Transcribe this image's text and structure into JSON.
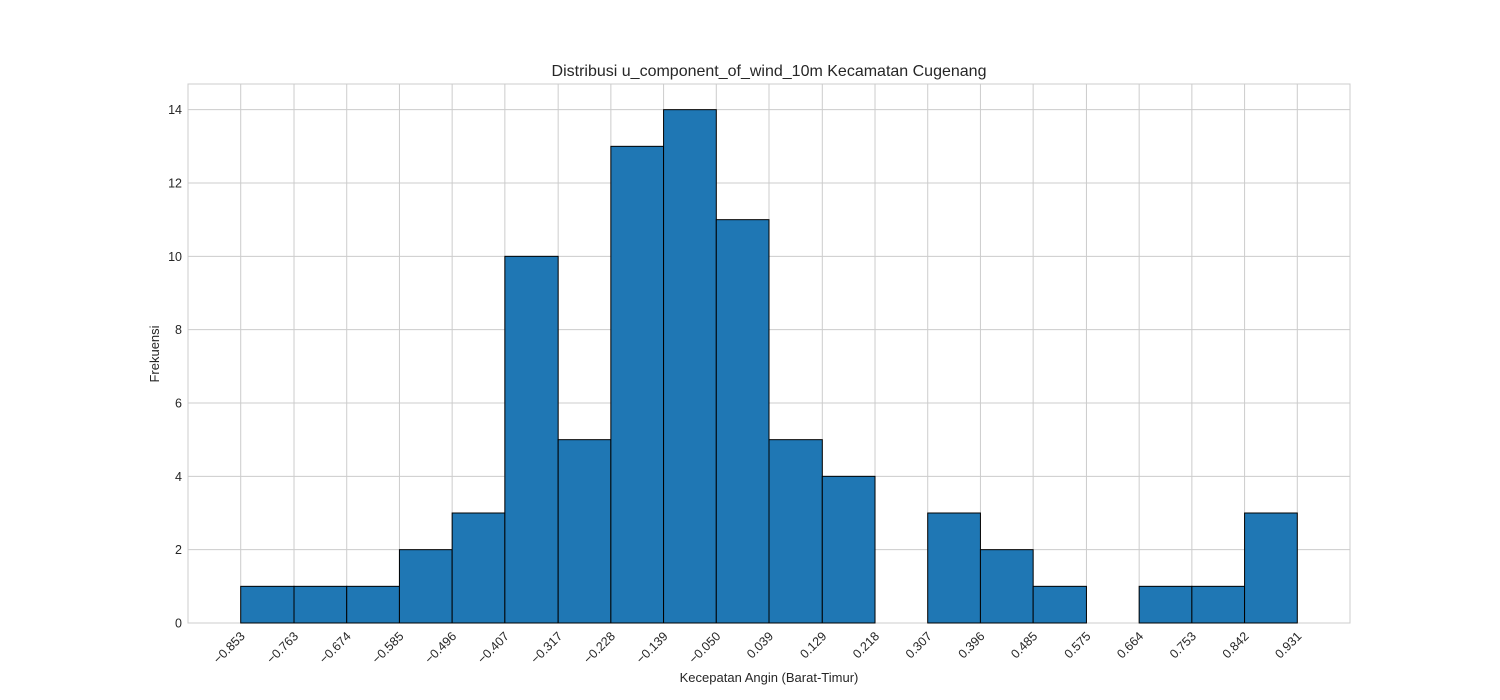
{
  "chart_data": {
    "type": "bar",
    "title": "Distribusi u_component_of_wind_10m Kecamatan Cugenang",
    "xlabel": "Kecepatan Angin (Barat-Timur)",
    "ylabel": "Frekuensi",
    "bin_edges": [
      -0.853,
      -0.763,
      -0.674,
      -0.585,
      -0.496,
      -0.407,
      -0.317,
      -0.228,
      -0.139,
      -0.05,
      0.039,
      0.129,
      0.218,
      0.307,
      0.396,
      0.485,
      0.575,
      0.664,
      0.753,
      0.842,
      0.931
    ],
    "x_tick_labels": [
      "−0.853",
      "−0.763",
      "−0.674",
      "−0.585",
      "−0.496",
      "−0.407",
      "−0.317",
      "−0.228",
      "−0.139",
      "−0.050",
      "0.039",
      "0.129",
      "0.218",
      "0.307",
      "0.396",
      "0.485",
      "0.575",
      "0.664",
      "0.753",
      "0.842",
      "0.931"
    ],
    "values": [
      1,
      1,
      1,
      2,
      3,
      10,
      5,
      13,
      14,
      11,
      5,
      4,
      0,
      3,
      2,
      1,
      0,
      1,
      1,
      3
    ],
    "y_ticks": [
      0,
      2,
      4,
      6,
      8,
      10,
      12,
      14
    ],
    "ylim": [
      0,
      14.7
    ],
    "xlim": [
      -0.942,
      1.02
    ],
    "grid": true,
    "bar_color": "#1f77b4",
    "edge_color": "#000000",
    "grid_color": "#cccccc"
  }
}
